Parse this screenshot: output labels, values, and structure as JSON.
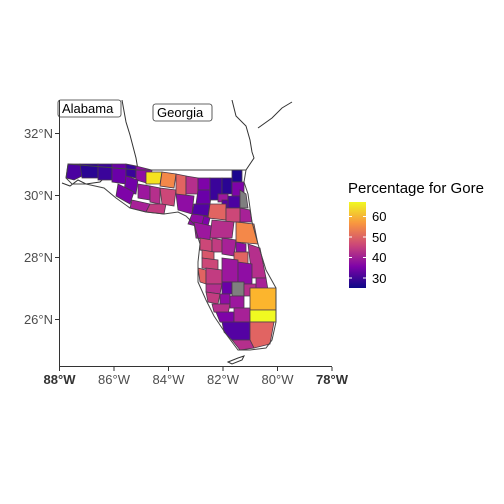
{
  "map": {
    "x_axis_ticks": [
      "88°W",
      "86°W",
      "84°W",
      "82°W",
      "80°W",
      "78°W"
    ],
    "y_axis_ticks": [
      "26°N",
      "28°N",
      "30°N",
      "32°N"
    ],
    "state_labels": {
      "alabama": "Alabama",
      "georgia": "Georgia"
    },
    "legend": {
      "title": "Percentage for Gore",
      "ticks": [
        "30",
        "40",
        "50",
        "60"
      ],
      "scale_min": 25,
      "scale_max": 67,
      "palette": [
        "#0d0887",
        "#7e03a8",
        "#cc4778",
        "#f89540",
        "#f0f921"
      ]
    },
    "missing_color": "#7f7f7f"
  }
}
